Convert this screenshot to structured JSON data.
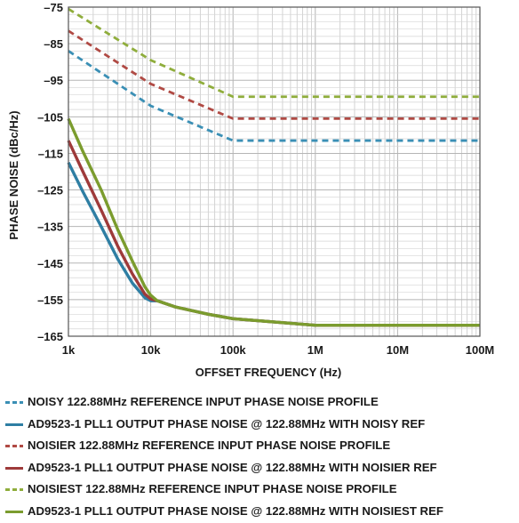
{
  "chart_data": {
    "type": "line",
    "title": "",
    "xlabel": "OFFSET FREQUENCY (Hz)",
    "ylabel": "PHASE NOISE (dBc/Hz)",
    "xscale": "log",
    "xlim": [
      1000,
      100000000
    ],
    "ylim": [
      -165,
      -75
    ],
    "grid": true,
    "legend_placement": "below",
    "x_ticks": [
      {
        "value": 1000,
        "label": "1k"
      },
      {
        "value": 10000,
        "label": "10k"
      },
      {
        "value": 100000,
        "label": "100k"
      },
      {
        "value": 1000000,
        "label": "1M"
      },
      {
        "value": 10000000,
        "label": "10M"
      },
      {
        "value": 100000000,
        "label": "100M"
      }
    ],
    "y_ticks": [
      {
        "value": -75,
        "label": "–75"
      },
      {
        "value": -85,
        "label": "–85"
      },
      {
        "value": -95,
        "label": "–95"
      },
      {
        "value": -105,
        "label": "–105"
      },
      {
        "value": -115,
        "label": "–115"
      },
      {
        "value": -125,
        "label": "–125"
      },
      {
        "value": -135,
        "label": "–135"
      },
      {
        "value": -145,
        "label": "–145"
      },
      {
        "value": -155,
        "label": "–155"
      },
      {
        "value": -165,
        "label": "–165"
      }
    ],
    "series": [
      {
        "name": "NOISY 122.88MHz REFERENCE INPUT PHASE NOISE PROFILE",
        "color": "#3a8fb5",
        "dashed": true,
        "x": [
          1000,
          10000,
          100000,
          100000000
        ],
        "y": [
          -87,
          -102,
          -111.5,
          -111.5
        ]
      },
      {
        "name": "AD9523-1 PLL1 OUTPUT PHASE NOISE @ 122.88MHz WITH NOISY REF",
        "color": "#2e7ea3",
        "dashed": false,
        "x": [
          1000,
          1500,
          2500,
          4000,
          6000,
          8500,
          10000,
          12000,
          20000,
          50000,
          100000,
          1000000,
          100000000
        ],
        "y": [
          -117.5,
          -125.5,
          -135,
          -144,
          -150.5,
          -154.5,
          -155.3,
          -155.3,
          -157,
          -159,
          -160.2,
          -162,
          -162
        ]
      },
      {
        "name": "NOISIER 122.88MHz REFERENCE INPUT PHASE NOISE PROFILE",
        "color": "#b04a44",
        "dashed": true,
        "x": [
          1000,
          10000,
          100000,
          100000000
        ],
        "y": [
          -81.5,
          -96,
          -105.5,
          -105.5
        ]
      },
      {
        "name": "AD9523-1 PLL1 OUTPUT PHASE NOISE @ 122.88MHz WITH NOISIER REF",
        "color": "#9e3a3a",
        "dashed": false,
        "x": [
          1000,
          1500,
          2500,
          4000,
          6000,
          8500,
          10000,
          12000,
          20000,
          50000,
          100000,
          1000000,
          100000000
        ],
        "y": [
          -111.5,
          -120,
          -130.5,
          -140.5,
          -148,
          -153.5,
          -154.8,
          -155.3,
          -157,
          -159,
          -160.2,
          -162,
          -162
        ]
      },
      {
        "name": "NOISIEST 122.88MHz REFERENCE INPUT PHASE NOISE PROFILE",
        "color": "#8fad3c",
        "dashed": true,
        "x": [
          1000,
          10000,
          100000,
          100000000
        ],
        "y": [
          -75.5,
          -89.5,
          -99.5,
          -99.5
        ]
      },
      {
        "name": "AD9523-1 PLL1 OUTPUT PHASE NOISE @ 122.88MHz WITH NOISIEST REF",
        "color": "#7b9c2e",
        "dashed": false,
        "x": [
          1000,
          1500,
          2500,
          4000,
          6000,
          8500,
          10000,
          12000,
          20000,
          50000,
          100000,
          1000000,
          100000000
        ],
        "y": [
          -105.5,
          -114.5,
          -125,
          -136,
          -144.5,
          -151.5,
          -153.8,
          -155.3,
          -157,
          -159,
          -160.2,
          -162,
          -162
        ]
      }
    ]
  }
}
